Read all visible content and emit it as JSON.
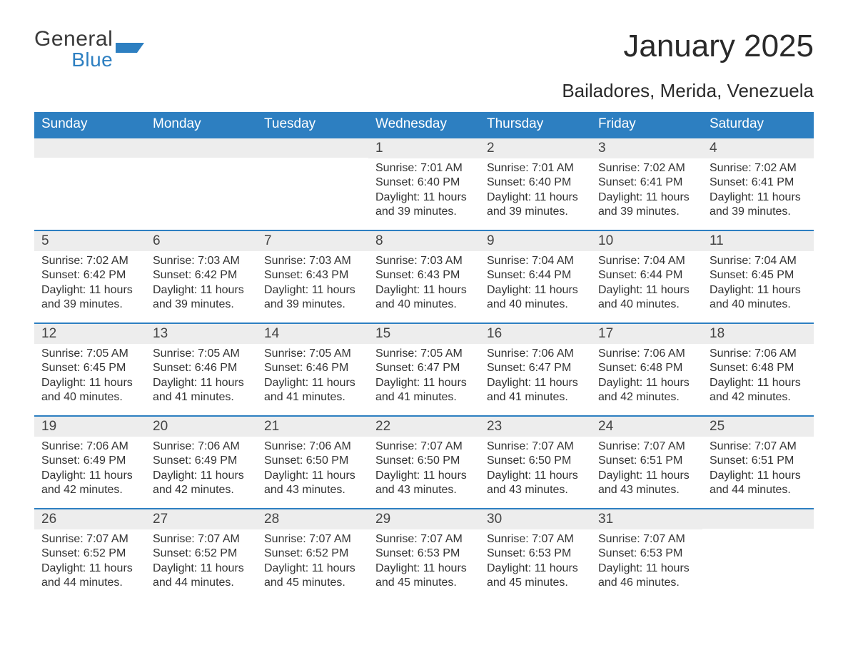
{
  "brand": {
    "general": "General",
    "blue": "Blue",
    "accent_color": "#2d7fc1"
  },
  "title": "January 2025",
  "location": "Bailadores, Merida, Venezuela",
  "colors": {
    "header_bg": "#2d7fc1",
    "header_text": "#ffffff",
    "daynum_bg": "#ededed",
    "body_text": "#333333",
    "rule": "#2d7fc1"
  },
  "weekdays": [
    "Sunday",
    "Monday",
    "Tuesday",
    "Wednesday",
    "Thursday",
    "Friday",
    "Saturday"
  ],
  "weeks": [
    [
      null,
      null,
      null,
      {
        "n": "1",
        "sr": "Sunrise: 7:01 AM",
        "ss": "Sunset: 6:40 PM",
        "d1": "Daylight: 11 hours",
        "d2": "and 39 minutes."
      },
      {
        "n": "2",
        "sr": "Sunrise: 7:01 AM",
        "ss": "Sunset: 6:40 PM",
        "d1": "Daylight: 11 hours",
        "d2": "and 39 minutes."
      },
      {
        "n": "3",
        "sr": "Sunrise: 7:02 AM",
        "ss": "Sunset: 6:41 PM",
        "d1": "Daylight: 11 hours",
        "d2": "and 39 minutes."
      },
      {
        "n": "4",
        "sr": "Sunrise: 7:02 AM",
        "ss": "Sunset: 6:41 PM",
        "d1": "Daylight: 11 hours",
        "d2": "and 39 minutes."
      }
    ],
    [
      {
        "n": "5",
        "sr": "Sunrise: 7:02 AM",
        "ss": "Sunset: 6:42 PM",
        "d1": "Daylight: 11 hours",
        "d2": "and 39 minutes."
      },
      {
        "n": "6",
        "sr": "Sunrise: 7:03 AM",
        "ss": "Sunset: 6:42 PM",
        "d1": "Daylight: 11 hours",
        "d2": "and 39 minutes."
      },
      {
        "n": "7",
        "sr": "Sunrise: 7:03 AM",
        "ss": "Sunset: 6:43 PM",
        "d1": "Daylight: 11 hours",
        "d2": "and 39 minutes."
      },
      {
        "n": "8",
        "sr": "Sunrise: 7:03 AM",
        "ss": "Sunset: 6:43 PM",
        "d1": "Daylight: 11 hours",
        "d2": "and 40 minutes."
      },
      {
        "n": "9",
        "sr": "Sunrise: 7:04 AM",
        "ss": "Sunset: 6:44 PM",
        "d1": "Daylight: 11 hours",
        "d2": "and 40 minutes."
      },
      {
        "n": "10",
        "sr": "Sunrise: 7:04 AM",
        "ss": "Sunset: 6:44 PM",
        "d1": "Daylight: 11 hours",
        "d2": "and 40 minutes."
      },
      {
        "n": "11",
        "sr": "Sunrise: 7:04 AM",
        "ss": "Sunset: 6:45 PM",
        "d1": "Daylight: 11 hours",
        "d2": "and 40 minutes."
      }
    ],
    [
      {
        "n": "12",
        "sr": "Sunrise: 7:05 AM",
        "ss": "Sunset: 6:45 PM",
        "d1": "Daylight: 11 hours",
        "d2": "and 40 minutes."
      },
      {
        "n": "13",
        "sr": "Sunrise: 7:05 AM",
        "ss": "Sunset: 6:46 PM",
        "d1": "Daylight: 11 hours",
        "d2": "and 41 minutes."
      },
      {
        "n": "14",
        "sr": "Sunrise: 7:05 AM",
        "ss": "Sunset: 6:46 PM",
        "d1": "Daylight: 11 hours",
        "d2": "and 41 minutes."
      },
      {
        "n": "15",
        "sr": "Sunrise: 7:05 AM",
        "ss": "Sunset: 6:47 PM",
        "d1": "Daylight: 11 hours",
        "d2": "and 41 minutes."
      },
      {
        "n": "16",
        "sr": "Sunrise: 7:06 AM",
        "ss": "Sunset: 6:47 PM",
        "d1": "Daylight: 11 hours",
        "d2": "and 41 minutes."
      },
      {
        "n": "17",
        "sr": "Sunrise: 7:06 AM",
        "ss": "Sunset: 6:48 PM",
        "d1": "Daylight: 11 hours",
        "d2": "and 42 minutes."
      },
      {
        "n": "18",
        "sr": "Sunrise: 7:06 AM",
        "ss": "Sunset: 6:48 PM",
        "d1": "Daylight: 11 hours",
        "d2": "and 42 minutes."
      }
    ],
    [
      {
        "n": "19",
        "sr": "Sunrise: 7:06 AM",
        "ss": "Sunset: 6:49 PM",
        "d1": "Daylight: 11 hours",
        "d2": "and 42 minutes."
      },
      {
        "n": "20",
        "sr": "Sunrise: 7:06 AM",
        "ss": "Sunset: 6:49 PM",
        "d1": "Daylight: 11 hours",
        "d2": "and 42 minutes."
      },
      {
        "n": "21",
        "sr": "Sunrise: 7:06 AM",
        "ss": "Sunset: 6:50 PM",
        "d1": "Daylight: 11 hours",
        "d2": "and 43 minutes."
      },
      {
        "n": "22",
        "sr": "Sunrise: 7:07 AM",
        "ss": "Sunset: 6:50 PM",
        "d1": "Daylight: 11 hours",
        "d2": "and 43 minutes."
      },
      {
        "n": "23",
        "sr": "Sunrise: 7:07 AM",
        "ss": "Sunset: 6:50 PM",
        "d1": "Daylight: 11 hours",
        "d2": "and 43 minutes."
      },
      {
        "n": "24",
        "sr": "Sunrise: 7:07 AM",
        "ss": "Sunset: 6:51 PM",
        "d1": "Daylight: 11 hours",
        "d2": "and 43 minutes."
      },
      {
        "n": "25",
        "sr": "Sunrise: 7:07 AM",
        "ss": "Sunset: 6:51 PM",
        "d1": "Daylight: 11 hours",
        "d2": "and 44 minutes."
      }
    ],
    [
      {
        "n": "26",
        "sr": "Sunrise: 7:07 AM",
        "ss": "Sunset: 6:52 PM",
        "d1": "Daylight: 11 hours",
        "d2": "and 44 minutes."
      },
      {
        "n": "27",
        "sr": "Sunrise: 7:07 AM",
        "ss": "Sunset: 6:52 PM",
        "d1": "Daylight: 11 hours",
        "d2": "and 44 minutes."
      },
      {
        "n": "28",
        "sr": "Sunrise: 7:07 AM",
        "ss": "Sunset: 6:52 PM",
        "d1": "Daylight: 11 hours",
        "d2": "and 45 minutes."
      },
      {
        "n": "29",
        "sr": "Sunrise: 7:07 AM",
        "ss": "Sunset: 6:53 PM",
        "d1": "Daylight: 11 hours",
        "d2": "and 45 minutes."
      },
      {
        "n": "30",
        "sr": "Sunrise: 7:07 AM",
        "ss": "Sunset: 6:53 PM",
        "d1": "Daylight: 11 hours",
        "d2": "and 45 minutes."
      },
      {
        "n": "31",
        "sr": "Sunrise: 7:07 AM",
        "ss": "Sunset: 6:53 PM",
        "d1": "Daylight: 11 hours",
        "d2": "and 46 minutes."
      },
      null
    ]
  ]
}
